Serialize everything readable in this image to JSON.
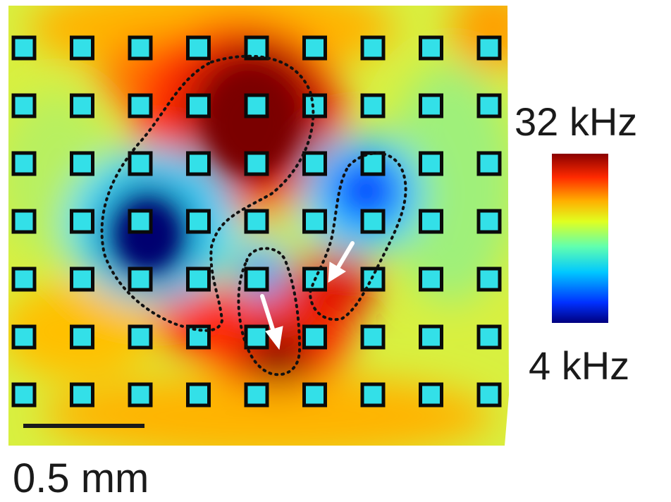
{
  "chart_data": {
    "type": "heatmap",
    "title": "",
    "colorbar": {
      "max_label": "32 kHz",
      "min_label": "4 kHz",
      "min_value": 4,
      "max_value": 32,
      "unit": "kHz",
      "colormap": [
        "#00007f",
        "#0060ff",
        "#00e0ff",
        "#80ff80",
        "#ffff00",
        "#ff9000",
        "#ff2000",
        "#7f0000"
      ]
    },
    "scale_bar": {
      "label": "0.5 mm",
      "length_mm": 0.5
    },
    "electrode_grid": {
      "rows": 7,
      "columns": 9,
      "fill_color": "#33e0e8",
      "border_color": "#0a0a0a"
    },
    "regions": [
      {
        "name": "dark-red-upper-lobe",
        "approx_kHz": 32
      },
      {
        "name": "dark-blue-left-lobe",
        "approx_kHz": 4
      },
      {
        "name": "blue-right-lobe",
        "approx_kHz": 6
      },
      {
        "name": "red-lower-center",
        "approx_kHz": 30
      }
    ],
    "annotations": {
      "arrows": 2,
      "arrow_color": "#ffffff",
      "dotted_outlines": 3,
      "outline_color": "#111111"
    }
  }
}
